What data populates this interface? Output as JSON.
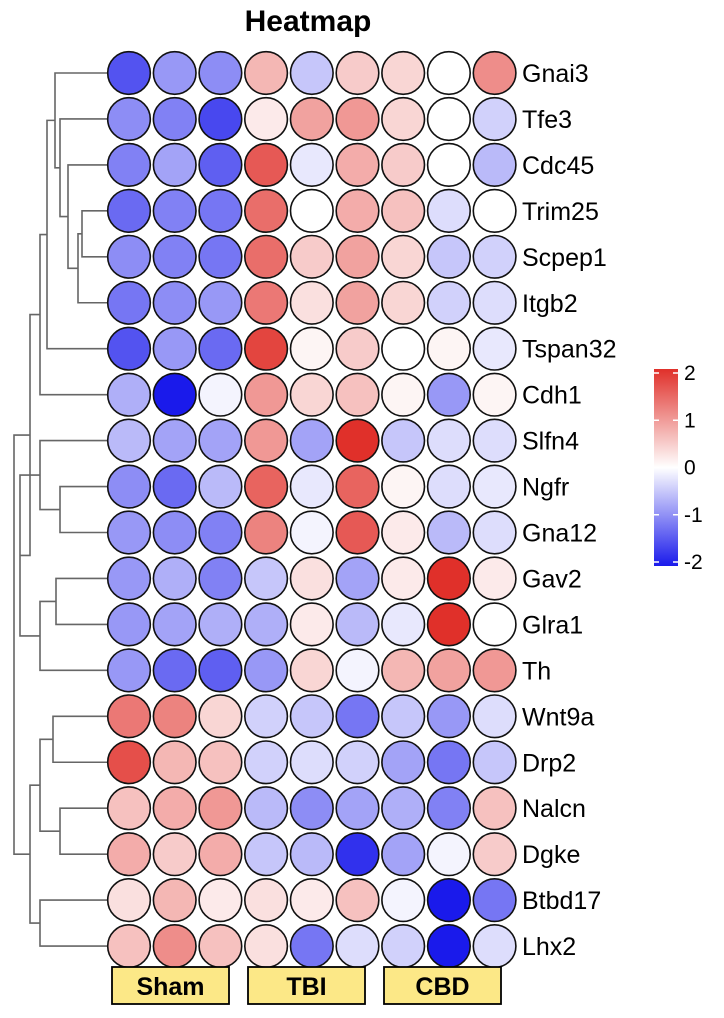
{
  "chart_data": {
    "type": "heatmap",
    "title": "Heatmap",
    "rows": [
      "Gnai3",
      "Tfe3",
      "Cdc45",
      "Trim25",
      "Scpep1",
      "Itgb2",
      "Tspan32",
      "Cdh1",
      "Slfn4",
      "Ngfr",
      "Gna12",
      "Gav2",
      "Glra1",
      "Th",
      "Wnt9a",
      "Drp2",
      "Nalcn",
      "Dgke",
      "Btbd17",
      "Lhx2"
    ],
    "groups": [
      {
        "name": "Sham",
        "columns": 3
      },
      {
        "name": "TBI",
        "columns": 3
      },
      {
        "name": "CBD",
        "columns": 3
      }
    ],
    "values": [
      [
        -1.5,
        -0.9,
        -1.0,
        0.7,
        -0.5,
        0.5,
        0.4,
        0.0,
        1.1
      ],
      [
        -1.0,
        -1.1,
        -1.6,
        0.2,
        0.9,
        1.0,
        0.4,
        0.0,
        -0.4
      ],
      [
        -1.1,
        -0.8,
        -1.4,
        1.6,
        -0.2,
        0.8,
        0.5,
        0.0,
        -0.6
      ],
      [
        -1.3,
        -1.1,
        -1.2,
        1.4,
        0.0,
        0.8,
        0.6,
        -0.3,
        0.0
      ],
      [
        -1.0,
        -1.1,
        -1.2,
        1.4,
        0.5,
        0.9,
        0.4,
        -0.5,
        -0.4
      ],
      [
        -1.2,
        -1.0,
        -0.9,
        1.3,
        0.3,
        0.9,
        0.4,
        -0.4,
        -0.3
      ],
      [
        -1.5,
        -0.9,
        -1.3,
        1.8,
        0.1,
        0.5,
        0.0,
        0.1,
        -0.2
      ],
      [
        -0.7,
        -2.1,
        -0.1,
        1.0,
        0.4,
        0.6,
        0.1,
        -0.9,
        0.1
      ],
      [
        -0.6,
        -0.8,
        -0.8,
        1.0,
        -0.8,
        2.0,
        -0.5,
        -0.3,
        -0.3
      ],
      [
        -1.0,
        -1.3,
        -0.6,
        1.5,
        -0.2,
        1.5,
        0.1,
        -0.3,
        -0.2
      ],
      [
        -0.9,
        -1.0,
        -1.1,
        1.2,
        -0.1,
        1.6,
        0.2,
        -0.6,
        -0.3
      ],
      [
        -0.9,
        -0.7,
        -1.1,
        -0.5,
        0.3,
        -0.8,
        0.2,
        2.0,
        0.2
      ],
      [
        -0.9,
        -0.8,
        -0.7,
        -0.7,
        0.2,
        -0.6,
        -0.2,
        2.2,
        0.0
      ],
      [
        -0.9,
        -1.3,
        -1.4,
        -0.9,
        0.4,
        -0.1,
        0.7,
        0.9,
        1.0
      ],
      [
        1.3,
        1.2,
        0.4,
        -0.4,
        -0.5,
        -1.2,
        -0.5,
        -0.9,
        -0.3
      ],
      [
        1.7,
        0.7,
        0.6,
        -0.4,
        -0.3,
        -0.4,
        -0.8,
        -1.2,
        -0.5
      ],
      [
        0.6,
        0.8,
        1.0,
        -0.6,
        -1.0,
        -0.8,
        -0.7,
        -1.1,
        0.6
      ],
      [
        0.8,
        0.5,
        0.8,
        -0.5,
        -0.6,
        -1.8,
        -0.8,
        -0.1,
        0.5
      ],
      [
        0.3,
        0.7,
        0.2,
        0.3,
        0.2,
        0.6,
        -0.1,
        -2.0,
        -1.2
      ],
      [
        0.6,
        1.1,
        0.6,
        0.3,
        -1.2,
        -0.3,
        -0.4,
        -2.0,
        -0.3
      ]
    ],
    "colorbar": {
      "min": -2,
      "max": 2,
      "ticks": [
        "2",
        "1",
        "0",
        "-1",
        "-2"
      ]
    },
    "dendrogram": "row clustering tree on left",
    "legend_position": "right",
    "colors": {
      "low": "#1a1aeb",
      "mid": "#ffffff",
      "high": "#e0302a",
      "group_box": "#fce887"
    }
  }
}
